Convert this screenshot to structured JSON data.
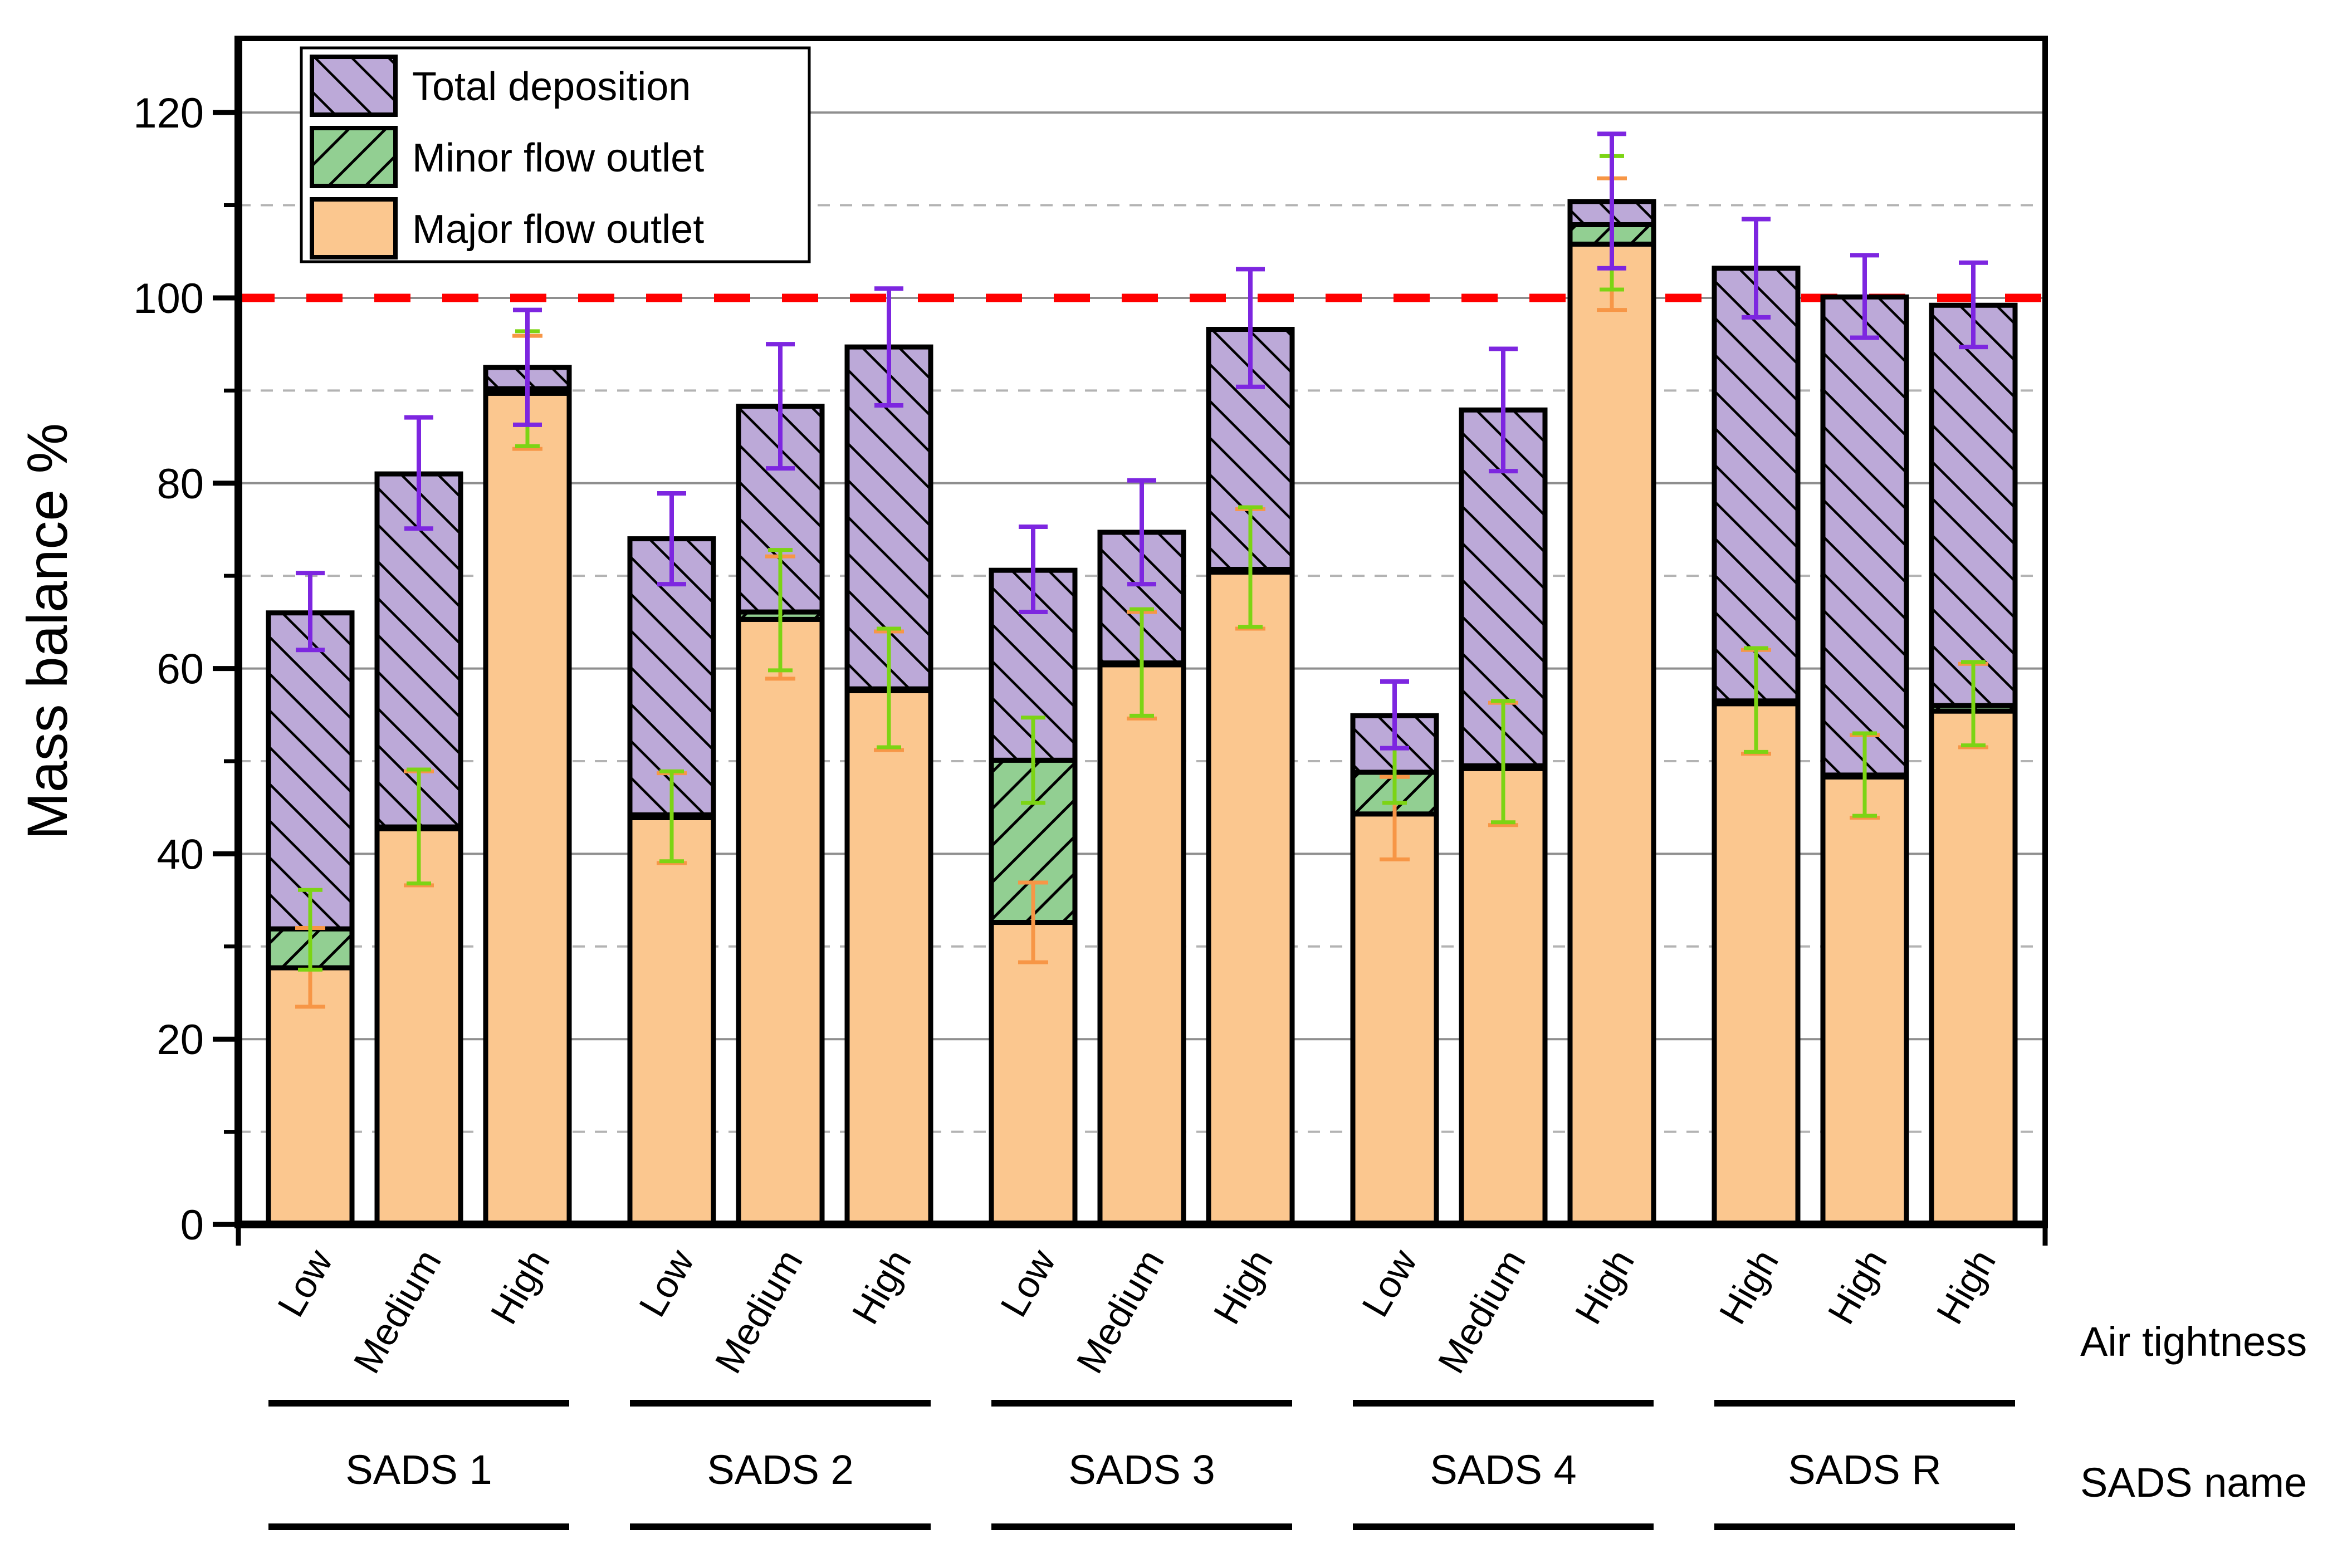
{
  "chart_data": {
    "type": "bar",
    "stacked": true,
    "title": "",
    "ylabel": "Mass balance %",
    "right_axis_caption_top": "Air tightness",
    "right_axis_caption_bottom": "SADS name",
    "ylim": [
      0,
      128
    ],
    "yticks_major": [
      0,
      20,
      40,
      60,
      80,
      100,
      120
    ],
    "yticks_minor": [
      10,
      30,
      50,
      70,
      90,
      110
    ],
    "grid": {
      "major_color": "#8f8f8f",
      "minor_color": "#b3b3b3",
      "minor_dashed": true
    },
    "reference_line": {
      "value": 100,
      "color": "#ff0000",
      "style": "dashed"
    },
    "legend_position": "top-left",
    "legend": [
      {
        "label": "Total deposition",
        "fill": "#BCA9D8",
        "hatch": "backslash"
      },
      {
        "label": "Minor flow outlet",
        "fill": "#92CF92",
        "hatch": "slash"
      },
      {
        "label": "Major flow outlet",
        "fill": "#FBC78F",
        "hatch": "none"
      }
    ],
    "error_colors": {
      "total": "#7D26E0",
      "minor": "#7CD414",
      "major": "#F79646"
    },
    "series_order": [
      "major",
      "minor",
      "deposition"
    ],
    "groups": [
      {
        "name": "SADS 1",
        "bars": [
          {
            "air_tightness": "Low",
            "major": 27.7,
            "minor": 4.2,
            "total": 66.0,
            "err_major": [
              23.5,
              32.0
            ],
            "err_minor": [
              27.5,
              36.1
            ],
            "err_total": [
              62.0,
              70.3
            ]
          },
          {
            "air_tightness": "Medium",
            "major": 42.7,
            "minor": 0.2,
            "total": 81.0,
            "err_major": [
              36.6,
              48.9
            ],
            "err_minor": [
              36.8,
              49.1
            ],
            "err_total": [
              75.1,
              87.1
            ]
          },
          {
            "air_tightness": "High",
            "major": 89.7,
            "minor": 0.5,
            "total": 92.5,
            "err_major": [
              83.7,
              95.9
            ],
            "err_minor": [
              84.0,
              96.4
            ],
            "err_total": [
              86.3,
              98.7
            ]
          }
        ]
      },
      {
        "name": "SADS 2",
        "bars": [
          {
            "air_tightness": "Low",
            "major": 43.9,
            "minor": 0.3,
            "total": 74.0,
            "err_major": [
              39.0,
              48.7
            ],
            "err_minor": [
              39.2,
              48.9
            ],
            "err_total": [
              69.1,
              78.9
            ]
          },
          {
            "air_tightness": "Medium",
            "major": 65.3,
            "minor": 0.8,
            "total": 88.3,
            "err_major": [
              58.9,
              72.1
            ],
            "err_minor": [
              59.8,
              72.8
            ],
            "err_total": [
              81.6,
              95.0
            ]
          },
          {
            "air_tightness": "High",
            "major": 57.6,
            "minor": 0.2,
            "total": 94.7,
            "err_major": [
              51.2,
              64.0
            ],
            "err_minor": [
              51.5,
              64.3
            ],
            "err_total": [
              88.4,
              101.0
            ]
          }
        ]
      },
      {
        "name": "SADS 3",
        "bars": [
          {
            "air_tightness": "Low",
            "major": 32.6,
            "minor": 17.5,
            "total": 70.6,
            "err_major": [
              28.3,
              36.9
            ],
            "err_minor": [
              45.5,
              54.7
            ],
            "err_total": [
              66.1,
              75.3
            ]
          },
          {
            "air_tightness": "Medium",
            "major": 60.4,
            "minor": 0.2,
            "total": 74.7,
            "err_major": [
              54.6,
              66.1
            ],
            "err_minor": [
              54.9,
              66.4
            ],
            "err_total": [
              69.1,
              80.3
            ]
          },
          {
            "air_tightness": "High",
            "major": 70.4,
            "minor": 0.3,
            "total": 96.6,
            "err_major": [
              64.3,
              77.2
            ],
            "err_minor": [
              64.5,
              77.4
            ],
            "err_total": [
              90.4,
              103.1
            ]
          }
        ]
      },
      {
        "name": "SADS 4",
        "bars": [
          {
            "air_tightness": "Low",
            "major": 44.3,
            "minor": 4.5,
            "total": 54.9,
            "err_major": [
              39.4,
              48.3
            ],
            "err_minor": [
              45.5,
              51.4
            ],
            "err_total": [
              51.4,
              58.6
            ]
          },
          {
            "air_tightness": "Medium",
            "major": 49.2,
            "minor": 0.3,
            "total": 87.9,
            "err_major": [
              43.1,
              56.3
            ],
            "err_minor": [
              43.4,
              56.5
            ],
            "err_total": [
              81.3,
              94.5
            ]
          },
          {
            "air_tightness": "High",
            "major": 105.8,
            "minor": 2.1,
            "total": 110.4,
            "err_major": [
              98.7,
              112.9
            ],
            "err_minor": [
              100.9,
              115.3
            ],
            "err_total": [
              103.2,
              117.7
            ]
          }
        ]
      },
      {
        "name": "SADS R",
        "bars": [
          {
            "air_tightness": "High",
            "major": 56.2,
            "minor": 0.3,
            "total": 103.2,
            "err_major": [
              50.8,
              62.0
            ],
            "err_minor": [
              51.0,
              62.2
            ],
            "err_total": [
              97.9,
              108.5
            ]
          },
          {
            "air_tightness": "High",
            "major": 48.3,
            "minor": 0.2,
            "total": 100.1,
            "err_major": [
              43.9,
              52.8
            ],
            "err_minor": [
              44.1,
              53.0
            ],
            "err_total": [
              95.7,
              104.6
            ]
          },
          {
            "air_tightness": "High",
            "major": 55.4,
            "minor": 0.6,
            "total": 99.2,
            "err_major": [
              51.5,
              60.5
            ],
            "err_minor": [
              51.7,
              60.7
            ],
            "err_total": [
              94.7,
              103.8
            ]
          }
        ]
      }
    ]
  }
}
